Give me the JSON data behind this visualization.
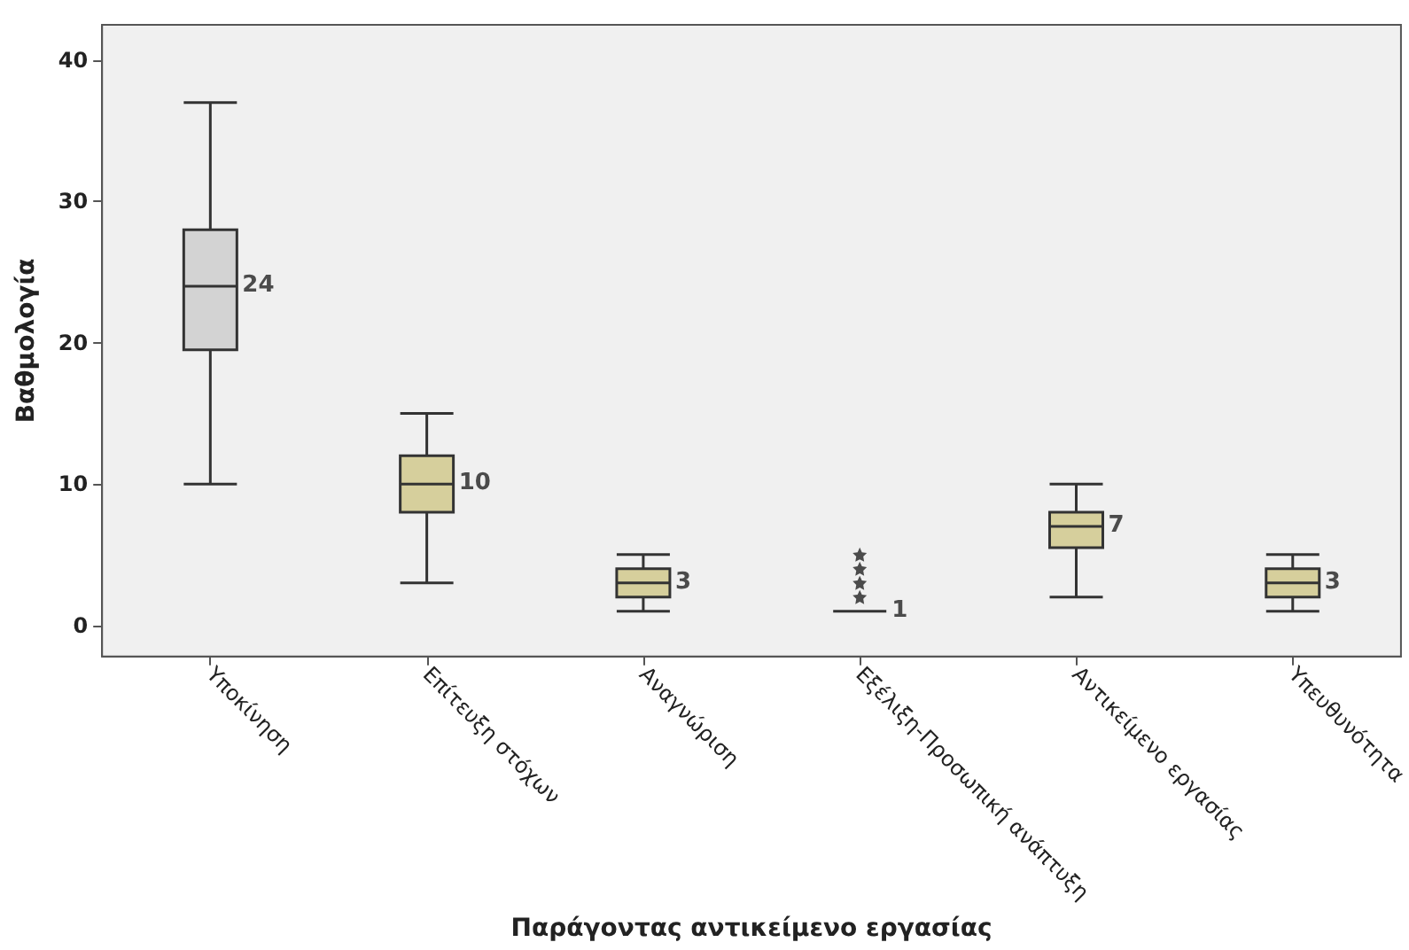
{
  "chart_data": {
    "type": "box",
    "xlabel": "Παράγοντας αντικείμενο εργασίας",
    "ylabel": "Βαθμολογία",
    "categories": [
      "Υποκίνηση",
      "Επίτευξη στόχων",
      "Αναγνώριση",
      "Εξέλιξη-Προσωπική ανάπτυξη",
      "Αντικείμενο εργασίας",
      "Υπευθυνότητα"
    ],
    "boxes": [
      {
        "low": 10,
        "q1": 19.5,
        "median": 24,
        "q3": 28,
        "high": 37
      },
      {
        "low": 3,
        "q1": 8,
        "median": 10,
        "q3": 12,
        "high": 15
      },
      {
        "low": 1,
        "q1": 2,
        "median": 3,
        "q3": 4,
        "high": 5
      },
      {
        "low": 1,
        "q1": 1,
        "median": 1,
        "q3": 1,
        "high": 1,
        "outliers": [
          2,
          3,
          4,
          5
        ]
      },
      {
        "low": 2,
        "q1": 5.5,
        "median": 7,
        "q3": 8,
        "high": 10
      },
      {
        "low": 1,
        "q1": 2,
        "median": 3,
        "q3": 4,
        "high": 5
      }
    ],
    "colors": [
      "#d3d3d3",
      "#d6cf9c",
      "#d6cf9c",
      "#333333",
      "#d6cf9c",
      "#d6cf9c"
    ],
    "value_labels": [
      "24",
      "10",
      "3",
      "1",
      "7",
      "3"
    ],
    "marker": "star",
    "ylim": [
      -2.2,
      42.5
    ],
    "yticks": [
      0,
      10,
      20,
      30,
      40
    ],
    "grid": false
  }
}
